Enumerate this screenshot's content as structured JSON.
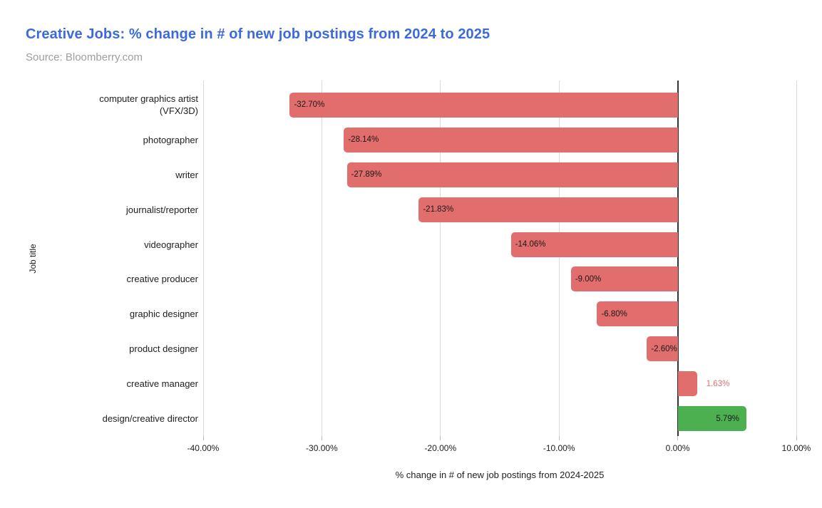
{
  "title": "Creative Jobs: % change in # of new job postings from 2024 to 2025",
  "source": "Source: Bloomberry.com",
  "colors": {
    "title": "#3c6bd9",
    "source": "#9e9e9e",
    "negative_bar": "#e26d6d",
    "positive_bar": "#4caf50",
    "gridline": "#dadada",
    "zero_line": "#333333",
    "text": "#212121"
  },
  "chart_data": {
    "type": "bar",
    "orientation": "horizontal",
    "title": "Creative Jobs: % change in # of new job postings from 2024 to 2025",
    "subtitle": "Source: Bloomberry.com",
    "xlabel": "% change in # of new job postings from 2024-2025",
    "ylabel": "Job title",
    "xlim": [
      -40,
      10
    ],
    "grid": true,
    "legend": false,
    "categories": [
      "computer graphics artist (VFX/3D)",
      "photographer",
      "writer",
      "journalist/reporter",
      "videographer",
      "creative producer",
      "graphic designer",
      "product designer",
      "creative manager",
      "design/creative director"
    ],
    "values": [
      -32.7,
      -28.14,
      -27.89,
      -21.83,
      -14.06,
      -9.0,
      -6.8,
      -2.6,
      1.63,
      5.79
    ],
    "value_labels": [
      "-32.70%",
      "-28.14%",
      "-27.89%",
      "-21.83%",
      "-14.06%",
      "-9.00%",
      "-6.80%",
      "-2.60%",
      "1.63%",
      "5.79%"
    ],
    "bar_colors": [
      "#e26d6d",
      "#e26d6d",
      "#e26d6d",
      "#e26d6d",
      "#e26d6d",
      "#e26d6d",
      "#e26d6d",
      "#e26d6d",
      "#e26d6d",
      "#4caf50"
    ],
    "label_positions": [
      "inside-start",
      "inside-start",
      "inside-start",
      "inside-start",
      "inside-start",
      "inside-start",
      "inside-start",
      "inside-start",
      "outside-end",
      "inside-end"
    ],
    "label_colors": [
      "#1a1a1a",
      "#1a1a1a",
      "#1a1a1a",
      "#1a1a1a",
      "#1a1a1a",
      "#1a1a1a",
      "#1a1a1a",
      "#1a1a1a",
      "#e26d6d",
      "#1a1a1a"
    ],
    "x_ticks": [
      {
        "value": -40,
        "label": "-40.00%"
      },
      {
        "value": -30,
        "label": "-30.00%"
      },
      {
        "value": -20,
        "label": "-20.00%"
      },
      {
        "value": -10,
        "label": "-10.00%"
      },
      {
        "value": 0,
        "label": "0.00%"
      },
      {
        "value": 10,
        "label": "10.00%"
      }
    ]
  }
}
